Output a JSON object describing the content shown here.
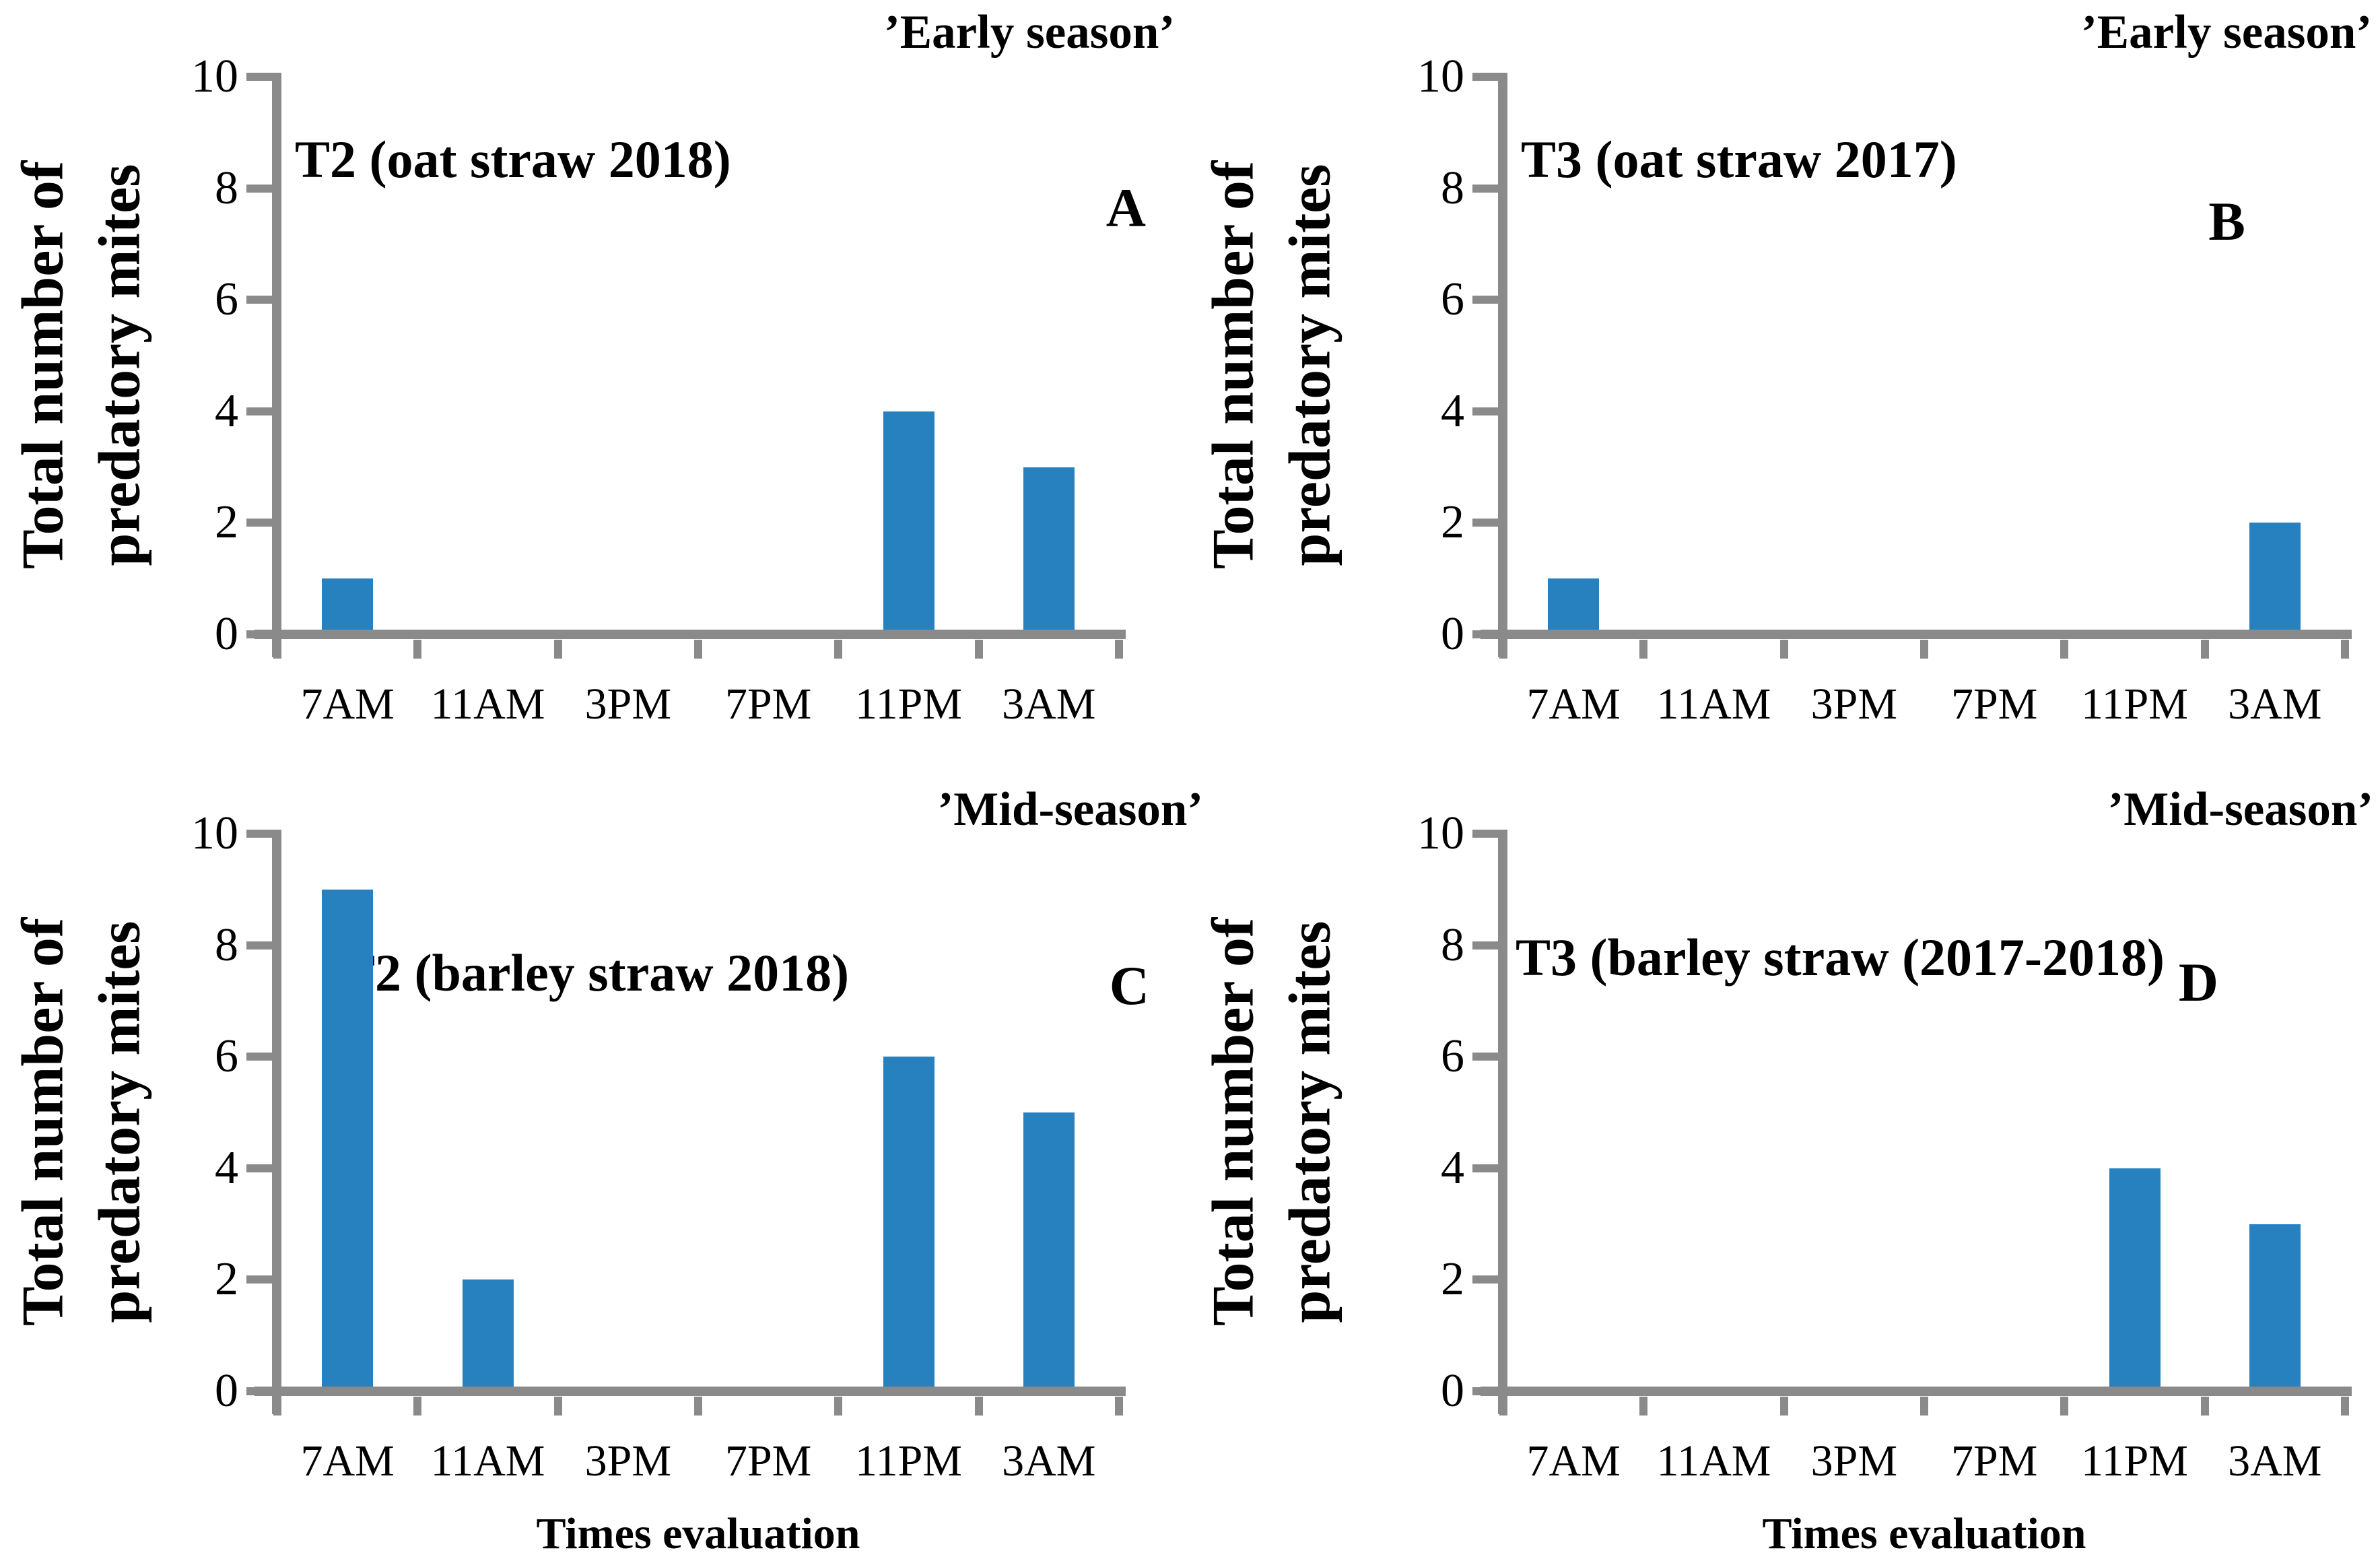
{
  "figure": {
    "ylabel_lines": [
      "Total number of",
      "predatory mites"
    ],
    "xlabel": "Times evaluation",
    "categories": [
      "7AM",
      "11AM",
      "3PM",
      "7PM",
      "11PM",
      "3AM"
    ],
    "yticks": [
      0,
      2,
      4,
      6,
      8,
      10
    ],
    "ylim": [
      0,
      10
    ],
    "colors": {
      "bar": "#2681be",
      "axis": "#8a8a8a",
      "text": "#000000",
      "background": "#ffffff"
    }
  },
  "chart_data": [
    {
      "type": "bar",
      "panel_letter": "A",
      "title": "’Early season’",
      "series_label": "T2 (oat straw 2018)",
      "categories": [
        "7AM",
        "11AM",
        "3PM",
        "7PM",
        "11PM",
        "3AM"
      ],
      "values": [
        1,
        0,
        0,
        0,
        4,
        3
      ],
      "ylabel": "Total number of predatory mites",
      "ylim": [
        0,
        10
      ],
      "yticks": [
        0,
        2,
        4,
        6,
        8,
        10
      ],
      "grid": false,
      "legend": false
    },
    {
      "type": "bar",
      "panel_letter": "B",
      "title": "’Early season’",
      "series_label": "T3 (oat straw 2017)",
      "categories": [
        "7AM",
        "11AM",
        "3PM",
        "7PM",
        "11PM",
        "3AM"
      ],
      "values": [
        1,
        0,
        0,
        0,
        0,
        2
      ],
      "ylabel": "Total number of predatory mites",
      "ylim": [
        0,
        10
      ],
      "yticks": [
        0,
        2,
        4,
        6,
        8,
        10
      ],
      "grid": false,
      "legend": false
    },
    {
      "type": "bar",
      "panel_letter": "C",
      "title": "’Mid-season’",
      "series_label": "T2 (barley straw 2018)",
      "categories": [
        "7AM",
        "11AM",
        "3PM",
        "7PM",
        "11PM",
        "3AM"
      ],
      "values": [
        9,
        2,
        0,
        0,
        6,
        5
      ],
      "ylabel": "Total number of predatory mites",
      "xlabel": "Times evaluation",
      "ylim": [
        0,
        10
      ],
      "yticks": [
        0,
        2,
        4,
        6,
        8,
        10
      ],
      "grid": false,
      "legend": false
    },
    {
      "type": "bar",
      "panel_letter": "D",
      "title": "’Mid-season’",
      "series_label": "T3 (barley straw (2017-2018)",
      "categories": [
        "7AM",
        "11AM",
        "3PM",
        "7PM",
        "11PM",
        "3AM"
      ],
      "values": [
        0,
        0,
        0,
        0,
        4,
        3
      ],
      "ylabel": "Total number of predatory mites",
      "xlabel": "Times evaluation",
      "ylim": [
        0,
        10
      ],
      "yticks": [
        0,
        2,
        4,
        6,
        8,
        10
      ],
      "grid": false,
      "legend": false
    }
  ]
}
